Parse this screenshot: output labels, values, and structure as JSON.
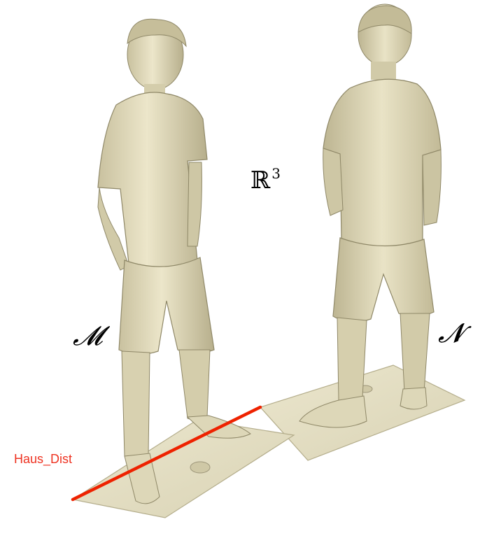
{
  "labels": {
    "space": "ℝ",
    "space_exp": "3",
    "mesh_m": "𝓜",
    "mesh_n": "𝓝",
    "distance": "Haus_Dist"
  },
  "colors": {
    "mesh": "#e7e1c3",
    "mesh_shade": "#bdb592",
    "mesh_dark": "#8f8868",
    "distance_line": "#ee2200",
    "distance_text": "#ee3322"
  },
  "icons": {
    "mesh_m": "scanned-person-front-figure",
    "mesh_n": "scanned-person-back-figure"
  }
}
